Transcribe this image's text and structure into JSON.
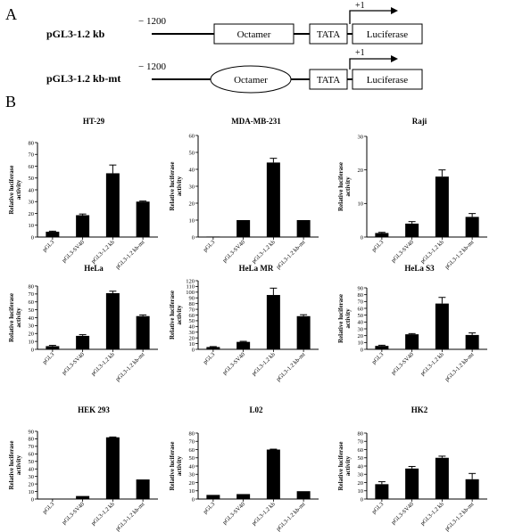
{
  "figure": {
    "panel_a_label": "A",
    "panel_b_label": "B",
    "constructs": [
      {
        "name": "pGL3-1.2 kb",
        "start_label": "− 1200",
        "elements": [
          "Octamer",
          "TATA",
          "Luciferase"
        ],
        "octamer_shape": "rectangle",
        "tss_label": "+1"
      },
      {
        "name": "pGL3-1.2 kb-mt",
        "start_label": "− 1200",
        "elements": [
          "Octamer",
          "TATA",
          "Luciferase"
        ],
        "octamer_shape": "ellipse",
        "tss_label": "+1"
      }
    ]
  },
  "chart_data": [
    {
      "type": "bar",
      "title": "HT-29",
      "ylabel": "Relative luciferase activity",
      "categories": [
        "pGL3",
        "pGL3-SV40",
        "pGL3-1.2 kb",
        "pGL3-1.2 kb-mt"
      ],
      "values": [
        4.5,
        18.5,
        54,
        30
      ],
      "errors": [
        0.5,
        1,
        7,
        0.5
      ],
      "ylim": [
        0,
        80
      ],
      "yticks": [
        0,
        10,
        20,
        30,
        40,
        50,
        60,
        70,
        80
      ]
    },
    {
      "type": "bar",
      "title": "MDA-MB-231",
      "ylabel": "Relative luciferase activity",
      "categories": [
        "pGL3",
        "pGL3-SV40",
        "pGL3-1.2 kb",
        "pGL3-1.2 kb-mt"
      ],
      "values": [
        0.3,
        10,
        44,
        10
      ],
      "errors": [
        0,
        0,
        2.5,
        0
      ],
      "ylim": [
        0,
        60
      ],
      "yticks": [
        0,
        10,
        20,
        30,
        40,
        50,
        60
      ]
    },
    {
      "type": "bar",
      "title": "Raji",
      "ylabel": "Relative luciferase activity",
      "categories": [
        "pGL3",
        "pGL3-SV40",
        "pGL3-1.2 kb",
        "pGL3-1.2 kb-mt"
      ],
      "values": [
        1.2,
        4,
        18,
        6
      ],
      "errors": [
        0.2,
        0.6,
        2,
        1
      ],
      "ylim": [
        0,
        30
      ],
      "yticks": [
        0,
        10,
        20,
        30
      ]
    },
    {
      "type": "bar",
      "title": "HeLa",
      "ylabel": "Relative luciferase activity",
      "categories": [
        "pGL3",
        "pGL3-SV40",
        "pGL3-1.2 kb",
        "pGL3-1.2 kb-mt"
      ],
      "values": [
        4,
        17,
        71,
        42
      ],
      "errors": [
        1,
        1.5,
        2.5,
        1.5
      ],
      "ylim": [
        0,
        80
      ],
      "yticks": [
        0,
        10,
        20,
        30,
        40,
        50,
        60,
        70,
        80
      ]
    },
    {
      "type": "bar",
      "title": "HeLa MR",
      "ylabel": "Relative luciferase activity",
      "categories": [
        "pGL3",
        "pGL3-SV40",
        "pGL3-1.2 kb",
        "pGL3-1.2 kb-mt"
      ],
      "values": [
        4,
        13,
        95,
        58
      ],
      "errors": [
        0.8,
        1,
        12,
        2.5
      ],
      "ylim": [
        0,
        120
      ],
      "yticks": [
        0,
        10,
        20,
        30,
        40,
        50,
        60,
        70,
        80,
        90,
        100,
        110,
        120
      ]
    },
    {
      "type": "bar",
      "title": "HeLa S3",
      "ylabel": "Relative luciferase activity",
      "categories": [
        "pGL3",
        "pGL3-SV40",
        "pGL3-1.2 kb",
        "pGL3-1.2 kb-mt"
      ],
      "values": [
        5,
        22,
        67,
        21
      ],
      "errors": [
        1,
        1,
        9,
        3
      ],
      "ylim": [
        0,
        90
      ],
      "yticks": [
        0,
        10,
        20,
        30,
        40,
        50,
        60,
        70,
        80,
        90
      ]
    },
    {
      "type": "bar",
      "title": "HEK 293",
      "ylabel": "Relative luciferase activity",
      "categories": [
        "pGL3",
        "pGL3-SV40",
        "pGL3-1.2 kb",
        "pGL3-1.2 kb-mt"
      ],
      "values": [
        0.2,
        4,
        82,
        26
      ],
      "errors": [
        0,
        0,
        0.5,
        0
      ],
      "ylim": [
        0,
        90
      ],
      "yticks": [
        0,
        10,
        20,
        30,
        40,
        50,
        60,
        70,
        80,
        90
      ]
    },
    {
      "type": "bar",
      "title": "L02",
      "ylabel": "Relative luciferase activity",
      "categories": [
        "pGL3",
        "pGL3-SV40",
        "pGL3-1.2 kb",
        "pGL3-1.2 kb-mt"
      ],
      "values": [
        5,
        6,
        60,
        9.5
      ],
      "errors": [
        0,
        0,
        0.5,
        0
      ],
      "ylim": [
        0,
        80
      ],
      "yticks": [
        0,
        10,
        20,
        30,
        40,
        50,
        60,
        70,
        80
      ]
    },
    {
      "type": "bar",
      "title": "HK2",
      "ylabel": "Relative luciferase activity",
      "categories": [
        "pGL3",
        "pGL3-SV40",
        "pGL3-1.2 kb",
        "pGL3-1.2 kb-mt"
      ],
      "values": [
        18,
        37,
        50,
        24
      ],
      "errors": [
        3,
        2.5,
        2,
        7
      ],
      "ylim": [
        0,
        80
      ],
      "yticks": [
        0,
        10,
        20,
        30,
        40,
        50,
        60,
        70,
        80
      ]
    }
  ]
}
